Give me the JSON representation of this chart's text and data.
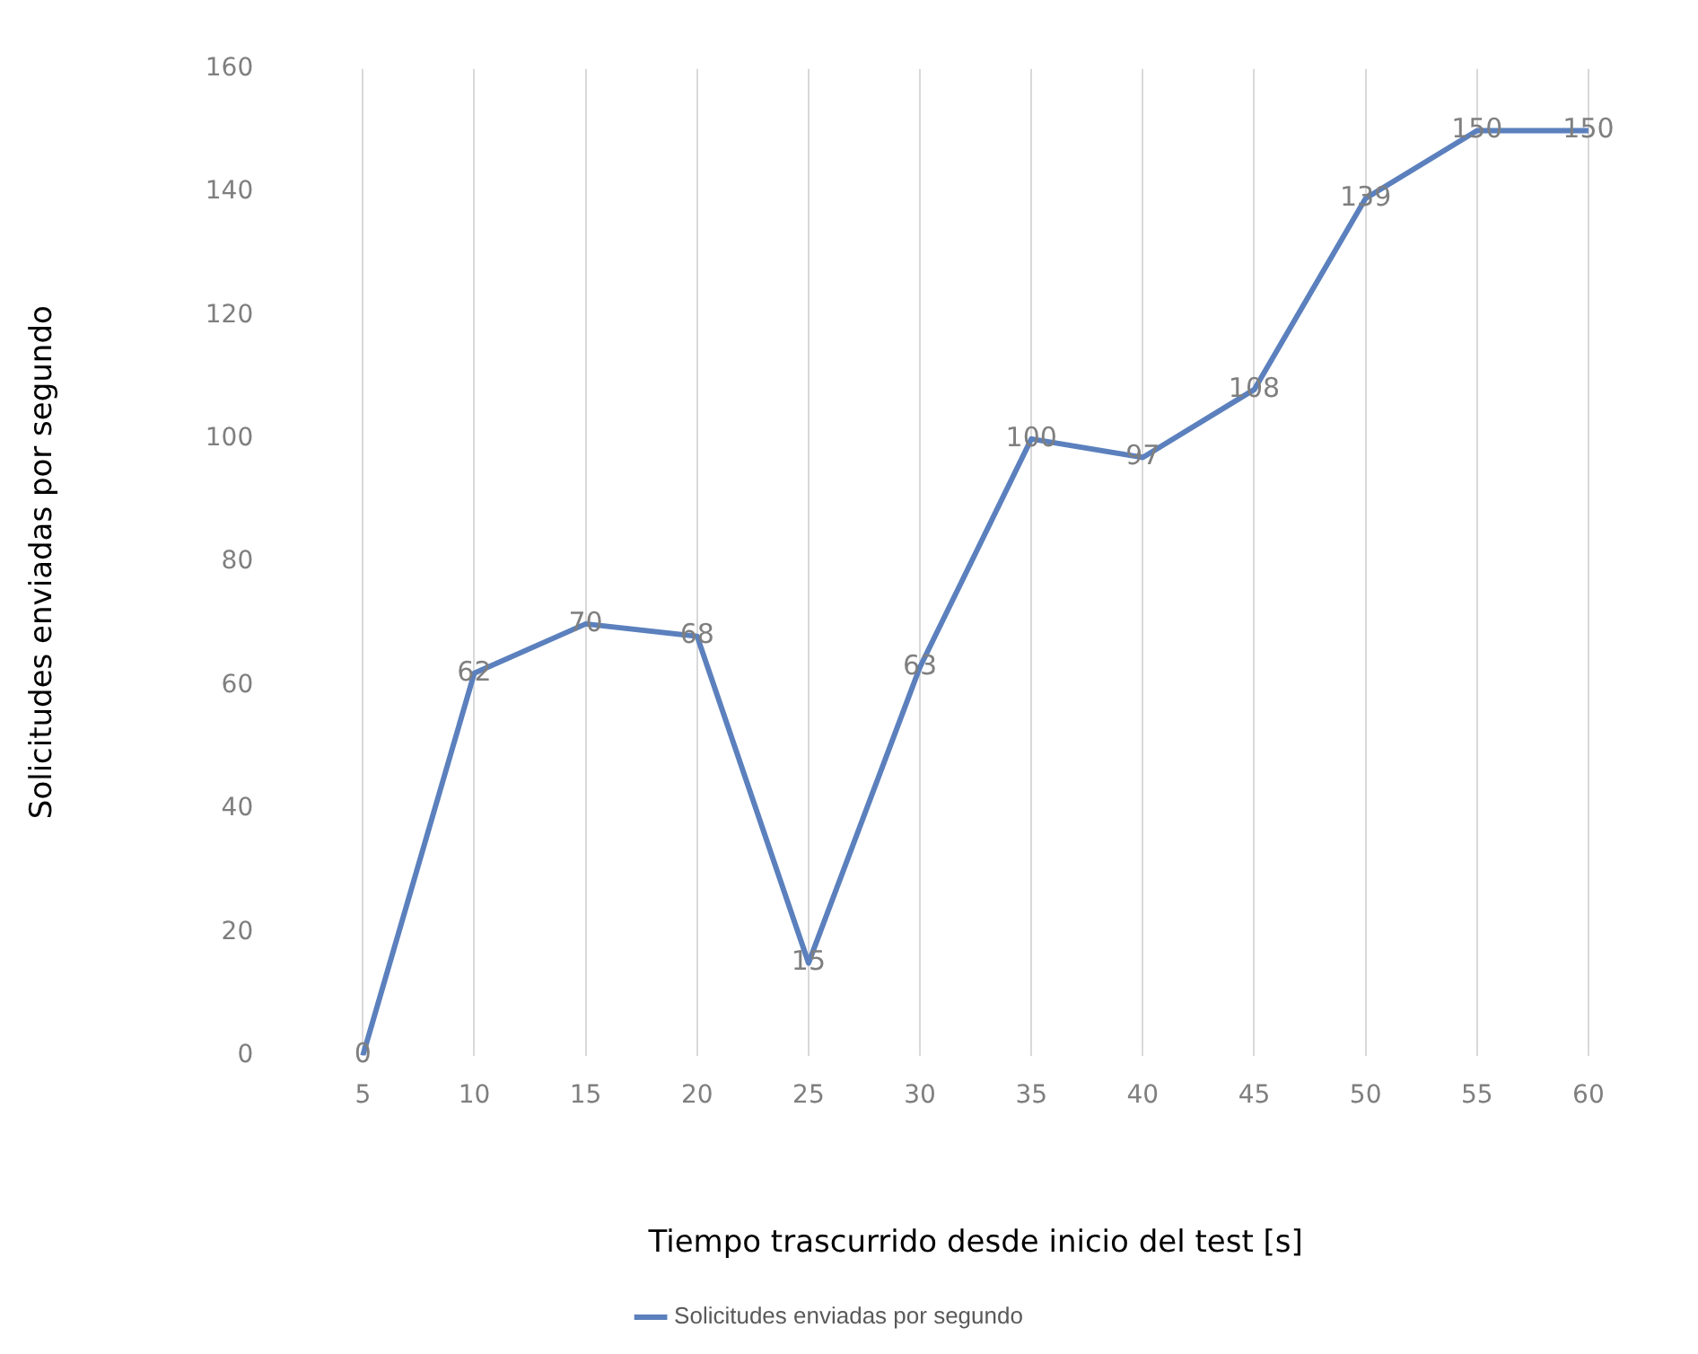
{
  "chart_data": {
    "type": "line",
    "xlabel": "Tiempo trascurrido desde inicio del test [s]",
    "ylabel": "Solicitudes enviadas por segundo",
    "categories": [
      "5",
      "10",
      "15",
      "20",
      "25",
      "30",
      "35",
      "40",
      "45",
      "50",
      "55",
      "60"
    ],
    "series": [
      {
        "name": "Solicitudes enviadas por segundo",
        "color": "#5b80bd",
        "values": [
          0,
          62,
          70,
          68,
          15,
          63,
          100,
          97,
          108,
          139,
          150,
          150
        ]
      }
    ],
    "ylim": [
      0,
      160
    ],
    "yticks": [
      0,
      20,
      40,
      60,
      80,
      100,
      120,
      140,
      160
    ],
    "grid": "x",
    "legend": "bottom",
    "marker": "none",
    "line_style": "solid",
    "data_labels": true
  }
}
